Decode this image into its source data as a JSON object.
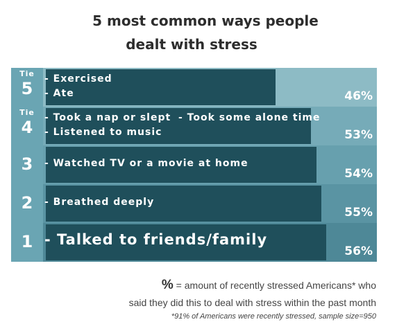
{
  "title_line1": "5 most common ways people",
  "title_line2": "dealt with stress",
  "colors": {
    "rank_column": "#6aa5b3",
    "bar": "#1f4f5b",
    "row_backgrounds": [
      "#8dbbc5",
      "#76abb8",
      "#67a0ae",
      "#5a94a3",
      "#4e8897"
    ]
  },
  "chart_data": {
    "type": "bar",
    "orientation": "horizontal",
    "title": "5 most common ways people dealt with stress",
    "xlim": [
      0,
      66
    ],
    "rows": [
      {
        "rank": "5",
        "tie": "Tie",
        "labels": [
          "- Exercised",
          "- Ate"
        ],
        "value": 46,
        "value_label": "46%"
      },
      {
        "rank": "4",
        "tie": "Tie",
        "labels": [
          "- Took a nap or slept",
          "- Took some alone time",
          "- Listened to music"
        ],
        "value": 53,
        "value_label": "53%"
      },
      {
        "rank": "3",
        "tie": "",
        "labels": [
          "- Watched TV or a movie at  home"
        ],
        "value": 54,
        "value_label": "54%"
      },
      {
        "rank": "2",
        "tie": "",
        "labels": [
          "- Breathed deeply"
        ],
        "value": 55,
        "value_label": "55%"
      },
      {
        "rank": "1",
        "tie": "",
        "labels": [
          "- Talked to friends/family"
        ],
        "value": 56,
        "value_label": "56%"
      }
    ]
  },
  "footnote": {
    "symbol": "%",
    "line1": " = amount of recently stressed Americans* who",
    "line2": "said they did this to deal with stress within the past month",
    "line3": "*91% of Americans were recently stressed, sample size=950"
  }
}
